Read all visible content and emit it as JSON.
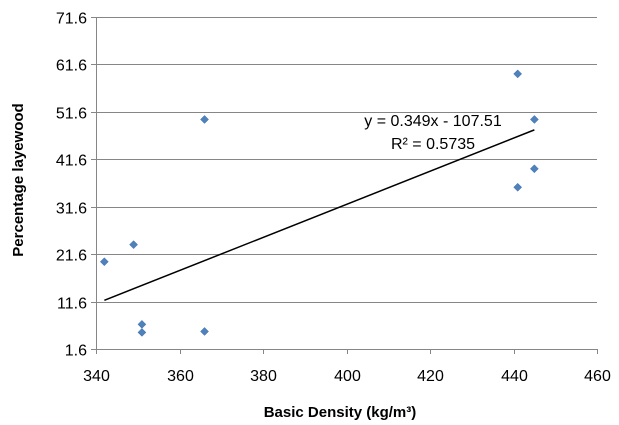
{
  "chart_data": {
    "type": "scatter",
    "xlabel": "Basic Density (kg/m³)",
    "ylabel": "Percentage layewood",
    "xlim": [
      340,
      460
    ],
    "ylim": [
      1.6,
      71.6
    ],
    "x_ticks": [
      "340",
      "360",
      "380",
      "400",
      "420",
      "440",
      "460"
    ],
    "y_ticks": [
      "1.6",
      "11.6",
      "21.6",
      "31.6",
      "41.6",
      "51.6",
      "61.6",
      "71.6"
    ],
    "x_tick_values": [
      340,
      360,
      380,
      400,
      420,
      440,
      460
    ],
    "y_tick_values": [
      1.6,
      11.6,
      21.6,
      31.6,
      41.6,
      51.6,
      61.6,
      71.6
    ],
    "grid": "horizontal",
    "legend": "none",
    "points": [
      {
        "x": 342,
        "y": 20.0
      },
      {
        "x": 349,
        "y": 23.6
      },
      {
        "x": 351,
        "y": 6.8
      },
      {
        "x": 351,
        "y": 5.1
      },
      {
        "x": 366,
        "y": 50.0
      },
      {
        "x": 366,
        "y": 5.3
      },
      {
        "x": 441,
        "y": 59.6
      },
      {
        "x": 441,
        "y": 35.7
      },
      {
        "x": 445,
        "y": 50.0
      },
      {
        "x": 445,
        "y": 39.6
      }
    ],
    "trendline": {
      "x": [
        342,
        445
      ],
      "y": [
        11.86,
        47.8
      ]
    },
    "annotations": [
      "y = 0.349x - 107.51",
      "R² = 0.5735"
    ],
    "colors": {
      "marker": "#4F81BD",
      "trendline": "#000000",
      "grid": "#868686",
      "axis": "#868686"
    }
  }
}
